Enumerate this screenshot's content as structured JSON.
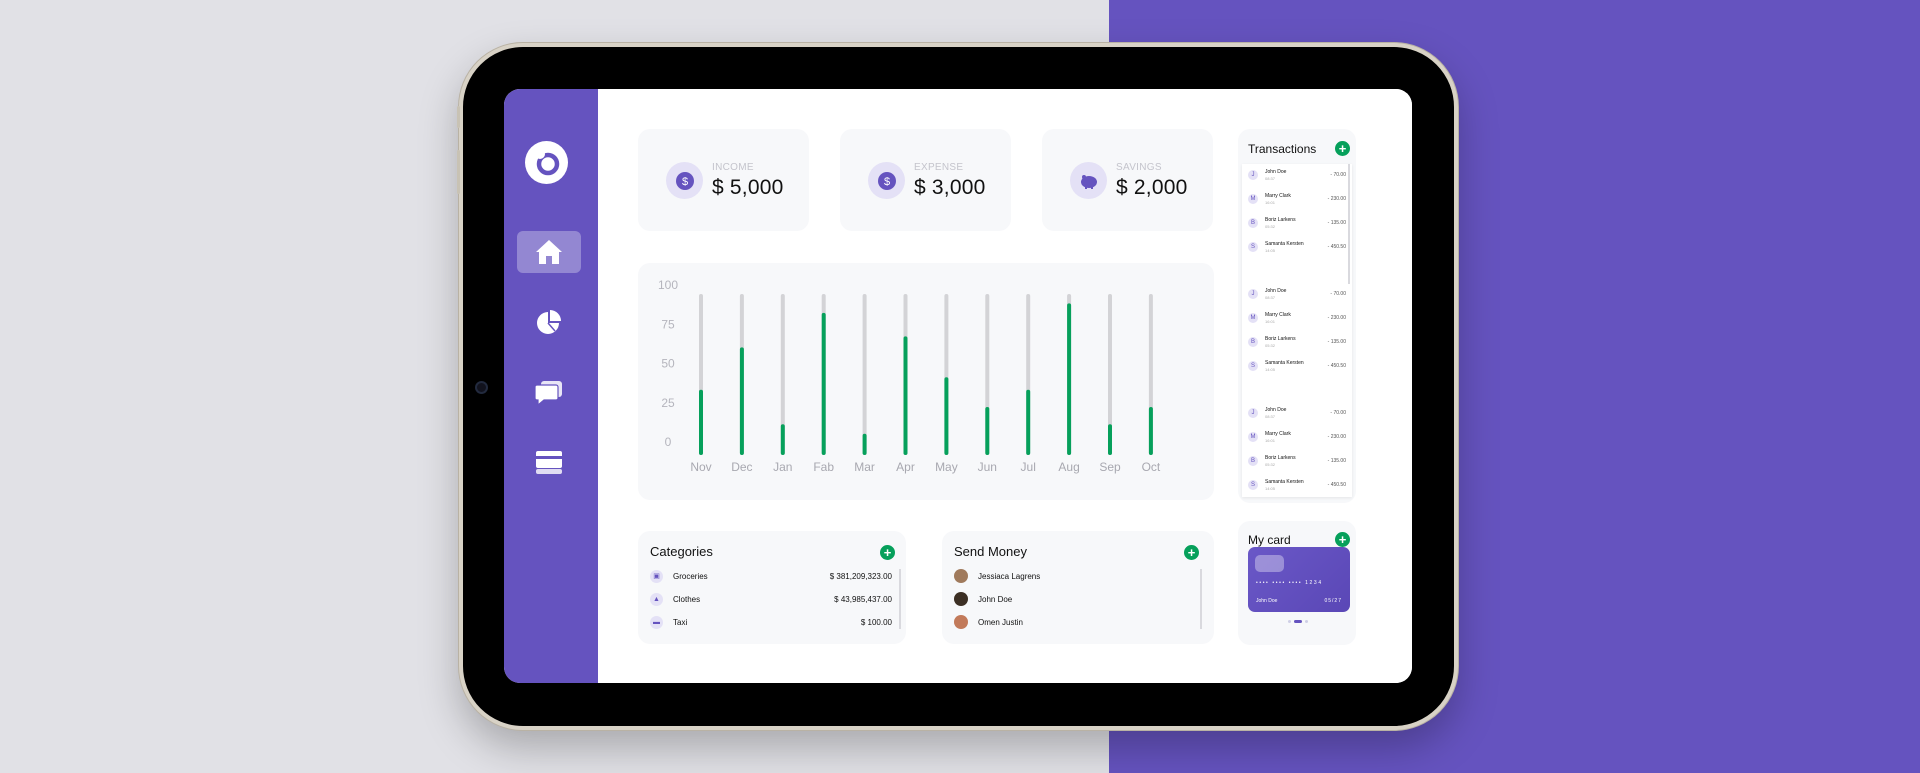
{
  "colors": {
    "accent": "#6553bf",
    "green": "#06a05b",
    "bar_track": "#d3d3d6",
    "card_bg": "#f7f8fa"
  },
  "sidebar": {
    "items": [
      {
        "icon": "home-icon",
        "active": true
      },
      {
        "icon": "pie-chart-icon",
        "active": false
      },
      {
        "icon": "chat-icon",
        "active": false
      },
      {
        "icon": "credit-card-icon",
        "active": false
      }
    ]
  },
  "stats": [
    {
      "label": "INCOME",
      "value": "$ 5,000",
      "icon": "dollar-coin-icon"
    },
    {
      "label": "EXPENSE",
      "value": "$ 3,000",
      "icon": "dollar-coin-icon"
    },
    {
      "label": "SAVINGS",
      "value": "$ 2,000",
      "icon": "piggy-bank-icon"
    }
  ],
  "chart_data": {
    "type": "bar",
    "categories": [
      "Nov",
      "Dec",
      "Jan",
      "Fab",
      "Mar",
      "Apr",
      "May",
      "Jun",
      "Jul",
      "Aug",
      "Sep",
      "Oct"
    ],
    "values": [
      39,
      66,
      17,
      88,
      11,
      73,
      47,
      28,
      39,
      94,
      17,
      28
    ],
    "yticks": [
      0,
      25,
      50,
      75,
      100
    ],
    "ylim": [
      0,
      100
    ],
    "grid": false
  },
  "categories_panel": {
    "title": "Categories",
    "items": [
      {
        "icon": "basket-icon",
        "label": "Groceries",
        "amount": "$ 381,209,323.00"
      },
      {
        "icon": "shirt-icon",
        "label": "Clothes",
        "amount": "$ 43,985,437.00"
      },
      {
        "icon": "taxi-icon",
        "label": "Taxi",
        "amount": "$ 100.00"
      }
    ]
  },
  "send_money": {
    "title": "Send Money",
    "contacts": [
      {
        "name": "Jessiaca Lagrens",
        "avatar_color": "#a07a5c"
      },
      {
        "name": "John Doe",
        "avatar_color": "#3c2f24"
      },
      {
        "name": "Omen Justin",
        "avatar_color": "#c27a5a"
      }
    ]
  },
  "transactions": {
    "title": "Transactions",
    "groups": [
      [
        {
          "initial": "J",
          "name": "John Doe",
          "time": "08:37",
          "amount": "- 70.00"
        },
        {
          "initial": "M",
          "name": "Marry Clark",
          "time": "16:01",
          "amount": "- 230.00"
        },
        {
          "initial": "B",
          "name": "Boriz Larkens",
          "time": "05:32",
          "amount": "- 135.00"
        },
        {
          "initial": "S",
          "name": "Samanta Kersten",
          "time": "14:05",
          "amount": "- 450.50"
        }
      ],
      [
        {
          "initial": "J",
          "name": "John Doe",
          "time": "08:37",
          "amount": "- 70.00"
        },
        {
          "initial": "M",
          "name": "Marry Clark",
          "time": "16:01",
          "amount": "- 230.00"
        },
        {
          "initial": "B",
          "name": "Boriz Larkens",
          "time": "05:32",
          "amount": "- 135.00"
        },
        {
          "initial": "S",
          "name": "Samanta Kersten",
          "time": "14:05",
          "amount": "- 450.50"
        }
      ],
      [
        {
          "initial": "J",
          "name": "John Doe",
          "time": "08:37",
          "amount": "- 70.00"
        },
        {
          "initial": "M",
          "name": "Marry Clark",
          "time": "16:01",
          "amount": "- 230.00"
        },
        {
          "initial": "B",
          "name": "Boriz Larkens",
          "time": "05:32",
          "amount": "- 135.00"
        },
        {
          "initial": "S",
          "name": "Samanta Kersten",
          "time": "14:05",
          "amount": "- 450.50"
        }
      ]
    ]
  },
  "my_card": {
    "title": "My card",
    "number": "•••• •••• •••• 1234",
    "holder": "John Doe",
    "expiry": "05/27"
  }
}
